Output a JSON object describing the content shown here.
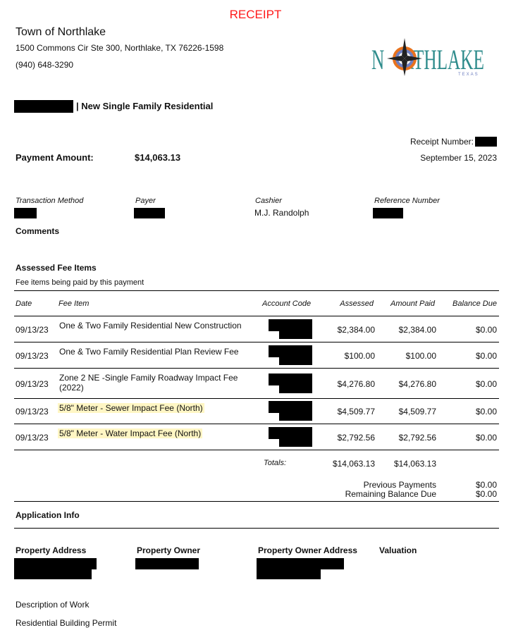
{
  "title": "RECEIPT",
  "colors": {
    "title": "#ff1a1a",
    "highlight": "#fff6c4",
    "logo_teal": "#2f8c8c",
    "logo_orange": "#e8731e",
    "logo_blue": "#6f7fc0"
  },
  "org": {
    "name": "Town of Northlake",
    "address": "1500 Commons Cir  Ste 300, Northlake, TX 76226-1598",
    "phone": "(940) 648-3290",
    "logo_text": "NORTHLAKE",
    "logo_sub": "TEXAS"
  },
  "permit_type": "| New Single Family Residential",
  "receipt": {
    "number_label": "Receipt Number:",
    "date": "September 15, 2023",
    "payment_label": "Payment Amount:",
    "payment_amount": "$14,063.13"
  },
  "transaction": {
    "method_label": "Transaction Method",
    "payer_label": "Payer",
    "cashier_label": "Cashier",
    "cashier": "M.J. Randolph",
    "reference_label": "Reference Number"
  },
  "comments_label": "Comments",
  "fees": {
    "title": "Assessed Fee Items",
    "subtitle": "Fee items being paid by this payment",
    "headers": [
      "Date",
      "Fee Item",
      "Account Code",
      "Assessed",
      "Amount Paid",
      "Balance Due"
    ],
    "rows": [
      {
        "date": "09/13/23",
        "item": "One & Two Family Residential New Construction",
        "assessed": "$2,384.00",
        "paid": "$2,384.00",
        "balance": "$0.00",
        "highlight": false
      },
      {
        "date": "09/13/23",
        "item": "One & Two Family Residential Plan Review Fee",
        "assessed": "$100.00",
        "paid": "$100.00",
        "balance": "$0.00",
        "highlight": false
      },
      {
        "date": "09/13/23",
        "item": "Zone 2 NE -Single Family Roadway Impact Fee (2022)",
        "assessed": "$4,276.80",
        "paid": "$4,276.80",
        "balance": "$0.00",
        "highlight": false
      },
      {
        "date": "09/13/23",
        "item": "5/8\" Meter - Sewer Impact Fee (North)",
        "assessed": "$4,509.77",
        "paid": "$4,509.77",
        "balance": "$0.00",
        "highlight": true
      },
      {
        "date": "09/13/23",
        "item": "5/8\" Meter - Water Impact Fee (North)",
        "assessed": "$2,792.56",
        "paid": "$2,792.56",
        "balance": "$0.00",
        "highlight": true
      }
    ],
    "totals_label": "Totals:",
    "total_assessed": "$14,063.13",
    "total_paid": "$14,063.13",
    "previous_label": "Previous Payments",
    "previous": "$0.00",
    "remaining_label": "Remaining Balance Due",
    "remaining": "$0.00"
  },
  "app": {
    "title": "Application Info",
    "address_label": "Property Address",
    "owner_label": "Property Owner",
    "owner_address_label": "Property Owner Address",
    "valuation_label": "Valuation",
    "work_label": "Description of Work",
    "work": "Residential Building Permit"
  }
}
